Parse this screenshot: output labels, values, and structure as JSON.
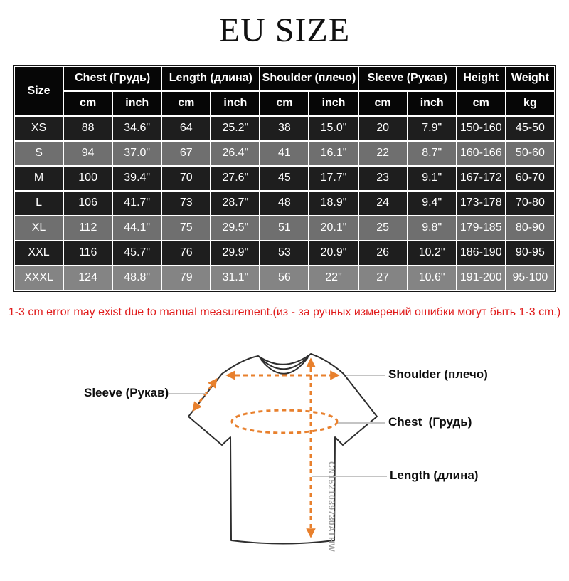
{
  "title": "EU SIZE",
  "table": {
    "size_col_header": "Size",
    "groups": [
      {
        "label": "Chest  (Грудь)",
        "units": [
          "cm",
          "inch"
        ]
      },
      {
        "label": "Length (длина)",
        "units": [
          "cm",
          "inch"
        ]
      },
      {
        "label": "Shoulder (плечо)",
        "units": [
          "cm",
          "inch"
        ]
      },
      {
        "label": "Sleeve (Рукав)",
        "units": [
          "cm",
          "inch"
        ]
      },
      {
        "label": "Height",
        "units": [
          "cm"
        ]
      },
      {
        "label": "Weight",
        "units": [
          "kg"
        ]
      }
    ],
    "rows": [
      {
        "size": "XS",
        "shade": "dark",
        "cells": [
          "88",
          "34.6\"",
          "64",
          "25.2\"",
          "38",
          "15.0\"",
          "20",
          "7.9\"",
          "150-160",
          "45-50"
        ]
      },
      {
        "size": "S",
        "shade": "gray",
        "cells": [
          "94",
          "37.0\"",
          "67",
          "26.4\"",
          "41",
          "16.1\"",
          "22",
          "8.7\"",
          "160-166",
          "50-60"
        ]
      },
      {
        "size": "M",
        "shade": "dark",
        "cells": [
          "100",
          "39.4\"",
          "70",
          "27.6\"",
          "45",
          "17.7\"",
          "23",
          "9.1\"",
          "167-172",
          "60-70"
        ]
      },
      {
        "size": "L",
        "shade": "dark",
        "cells": [
          "106",
          "41.7\"",
          "73",
          "28.7\"",
          "48",
          "18.9\"",
          "24",
          "9.4\"",
          "173-178",
          "70-80"
        ]
      },
      {
        "size": "XL",
        "shade": "gray",
        "cells": [
          "112",
          "44.1\"",
          "75",
          "29.5\"",
          "51",
          "20.1\"",
          "25",
          "9.8\"",
          "179-185",
          "80-90"
        ]
      },
      {
        "size": "XXL",
        "shade": "dark",
        "cells": [
          "116",
          "45.7\"",
          "76",
          "29.9\"",
          "53",
          "20.9\"",
          "26",
          "10.2\"",
          "186-190",
          "90-95"
        ]
      },
      {
        "size": "XXXL",
        "shade": "light",
        "cells": [
          "124",
          "48.8\"",
          "79",
          "31.1\"",
          "56",
          "22\"",
          "27",
          "10.6\"",
          "191-200",
          "95-100"
        ]
      }
    ]
  },
  "note": "1-3 cm error may exist due to manual measurement.(из - за ручных измерений ошибки могут быть 1-3 cm.)",
  "diagram": {
    "labels": {
      "shoulder": "Shoulder (плечо)",
      "sleeve": "Sleeve (Рукав)",
      "chest": "Chest  (Грудь)",
      "length": "Length (длина)"
    },
    "watermark": "CN1521039730ATHW"
  },
  "colors": {
    "orange": "#e8802d",
    "red": "#e01c1c",
    "header_bg": "#060606",
    "row_dark": "#1e1e1e",
    "row_gray": "#6f6f6f",
    "row_light": "#848484",
    "shirt": "#2e2e2e",
    "leader": "#c4c4c4",
    "watermark": "#a3a3a3"
  }
}
